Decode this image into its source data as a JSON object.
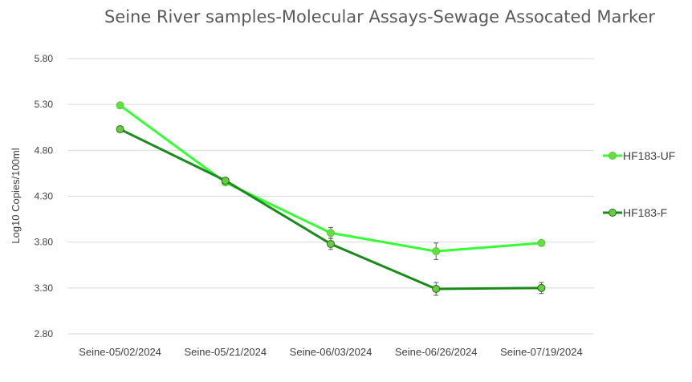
{
  "chart_data": {
    "type": "line",
    "title": "Seine River samples-Molecular Assays-Sewage Assocated Marker",
    "xlabel": "",
    "ylabel": "Log10 Copies/100ml",
    "categories": [
      "Seine-05/02/2024",
      "Seine-05/21/2024",
      "Seine-06/03/2024",
      "Seine-06/26/2024",
      "Seine-07/19/2024"
    ],
    "yticks": [
      "2.80",
      "3.30",
      "3.80",
      "4.30",
      "4.80",
      "5.30",
      "5.80"
    ],
    "ylim": [
      2.8,
      5.8
    ],
    "grid": true,
    "legend_position": "right",
    "series": [
      {
        "name": "HF183-UF",
        "values": [
          5.29,
          4.45,
          3.9,
          3.7,
          3.79
        ],
        "errors": [
          0,
          0,
          0.06,
          0.09,
          0
        ],
        "line_color": "#33ff33",
        "marker_fill": "#66dd44",
        "marker_stroke": "#55cc33"
      },
      {
        "name": "HF183-F",
        "values": [
          5.03,
          4.47,
          3.78,
          3.29,
          3.3
        ],
        "errors": [
          0,
          0,
          0.06,
          0.07,
          0.06
        ],
        "line_color": "#1a8a1a",
        "marker_fill": "#66cc44",
        "marker_stroke": "#2b6b1a"
      }
    ]
  }
}
